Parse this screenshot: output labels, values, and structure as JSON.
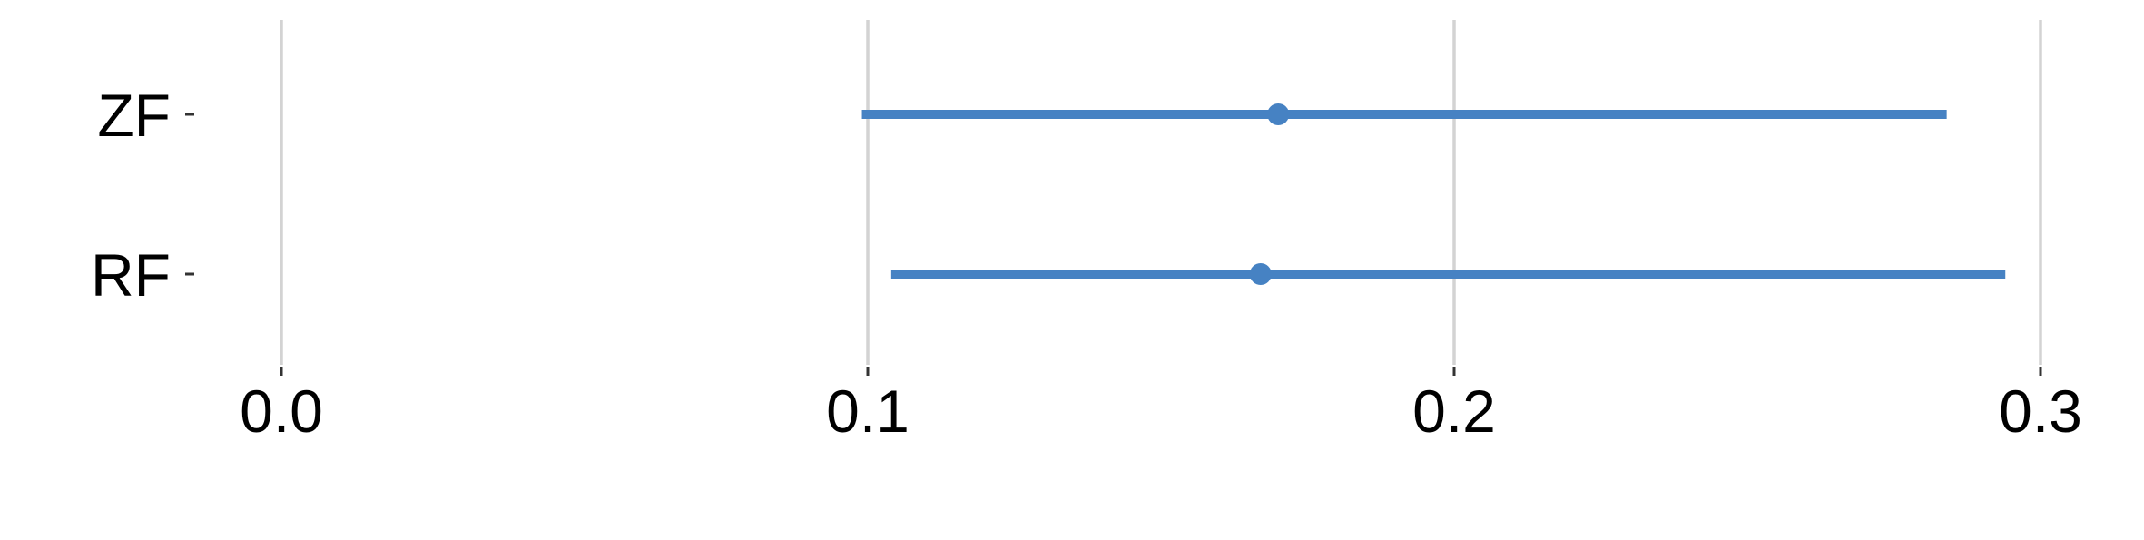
{
  "chart_data": {
    "type": "interval",
    "title": "",
    "xlabel": "",
    "ylabel": "",
    "xlim": [
      -0.007,
      0.305
    ],
    "x_ticks": [
      0.0,
      0.1,
      0.2,
      0.3
    ],
    "x_tick_labels": [
      "0.0",
      "0.1",
      "0.2",
      "0.3"
    ],
    "grid": "vertical",
    "color": "#4682c3",
    "rows": [
      {
        "label": "ZF",
        "estimate": 0.17,
        "low": 0.099,
        "high": 0.284
      },
      {
        "label": "RF",
        "estimate": 0.167,
        "low": 0.104,
        "high": 0.294
      }
    ]
  }
}
